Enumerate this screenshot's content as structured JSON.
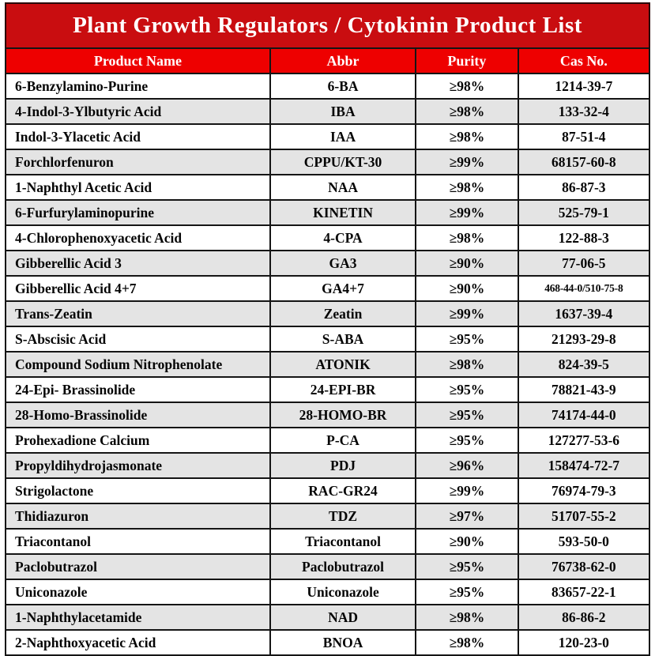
{
  "title": "Plant Growth Regulators / Cytokinin Product List",
  "colors": {
    "title_bg": "#c90d10",
    "header_bg": "#ee0000",
    "header_text": "#ffffff",
    "row_alt_bg": "#e4e4e4",
    "border": "#151515"
  },
  "table": {
    "columns": [
      "Product Name",
      "Abbr",
      "Purity",
      "Cas No."
    ],
    "rows": [
      {
        "product": "6-Benzylamino-Purine",
        "abbr": "6-BA",
        "purity": "≥98%",
        "cas": "1214-39-7"
      },
      {
        "product": "4-Indol-3-Ylbutyric Acid",
        "abbr": "IBA",
        "purity": "≥98%",
        "cas": "133-32-4"
      },
      {
        "product": "Indol-3-Ylacetic Acid",
        "abbr": "IAA",
        "purity": "≥98%",
        "cas": "87-51-4"
      },
      {
        "product": "Forchlorfenuron",
        "abbr": "CPPU/KT-30",
        "purity": "≥99%",
        "cas": "68157-60-8"
      },
      {
        "product": "1-Naphthyl Acetic Acid",
        "abbr": "NAA",
        "purity": "≥98%",
        "cas": "86-87-3"
      },
      {
        "product": "6-Furfurylaminopurine",
        "abbr": "KINETIN",
        "purity": "≥99%",
        "cas": "525-79-1"
      },
      {
        "product": "4-Chlorophenoxyacetic Acid",
        "abbr": "4-CPA",
        "purity": "≥98%",
        "cas": "122-88-3"
      },
      {
        "product": "Gibberellic Acid 3",
        "abbr": "GA3",
        "purity": "≥90%",
        "cas": "77-06-5"
      },
      {
        "product": "Gibberellic Acid 4+7",
        "abbr": "GA4+7",
        "purity": "≥90%",
        "cas": "468-44-0/510-75-8"
      },
      {
        "product": "Trans-Zeatin",
        "abbr": "Zeatin",
        "purity": "≥99%",
        "cas": "1637-39-4"
      },
      {
        "product": "S-Abscisic Acid",
        "abbr": "S-ABA",
        "purity": "≥95%",
        "cas": "21293-29-8"
      },
      {
        "product": "Compound Sodium Nitrophenolate",
        "abbr": "ATONIK",
        "purity": "≥98%",
        "cas": "824-39-5"
      },
      {
        "product": "24-Epi- Brassinolide",
        "abbr": "24-EPI-BR",
        "purity": "≥95%",
        "cas": "78821-43-9"
      },
      {
        "product": "28-Homo-Brassinolide",
        "abbr": "28-HOMO-BR",
        "purity": "≥95%",
        "cas": "74174-44-0"
      },
      {
        "product": "Prohexadione Calcium",
        "abbr": "P-CA",
        "purity": "≥95%",
        "cas": "127277-53-6"
      },
      {
        "product": "Propyldihydrojasmonate",
        "abbr": "PDJ",
        "purity": "≥96%",
        "cas": "158474-72-7"
      },
      {
        "product": "Strigolactone",
        "abbr": "RAC-GR24",
        "purity": "≥99%",
        "cas": "76974-79-3"
      },
      {
        "product": "Thidiazuron",
        "abbr": "TDZ",
        "purity": "≥97%",
        "cas": "51707-55-2"
      },
      {
        "product": "Triacontanol",
        "abbr": "Triacontanol",
        "purity": "≥90%",
        "cas": "593-50-0"
      },
      {
        "product": "Paclobutrazol",
        "abbr": "Paclobutrazol",
        "purity": "≥95%",
        "cas": "76738-62-0"
      },
      {
        "product": "Uniconazole",
        "abbr": "Uniconazole",
        "purity": "≥95%",
        "cas": "83657-22-1"
      },
      {
        "product": "1-Naphthylacetamide",
        "abbr": "NAD",
        "purity": "≥98%",
        "cas": "86-86-2"
      },
      {
        "product": "2-Naphthoxyacetic Acid",
        "abbr": "BNOA",
        "purity": "≥98%",
        "cas": "120-23-0"
      }
    ]
  }
}
